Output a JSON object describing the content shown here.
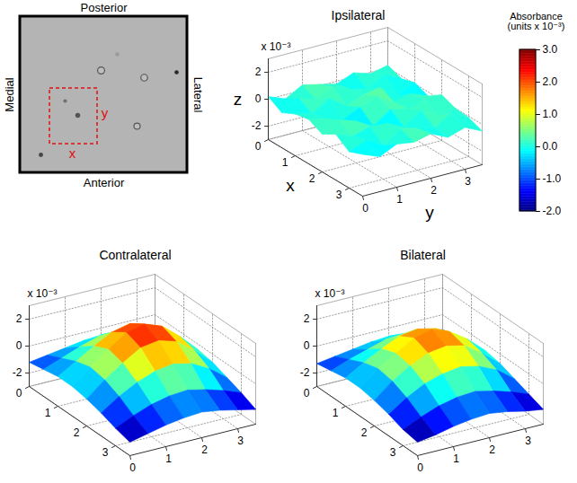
{
  "chart_data": [
    {
      "type": "surface",
      "title": "Ipsilateral",
      "xlabel": "x",
      "ylabel": "y",
      "zlabel": "z",
      "annotation": "x 10⁻³",
      "x": [
        0,
        0.5,
        1,
        1.5,
        2,
        2.5,
        3,
        3.5
      ],
      "y": [
        0,
        0.5,
        1,
        1.5,
        2,
        2.5,
        3,
        3.5
      ],
      "z": [
        [
          0.2,
          -0.3,
          0.4,
          0.1,
          -0.2,
          0.3,
          -0.1,
          0.2
        ],
        [
          -0.4,
          0.3,
          -0.1,
          0.5,
          0.0,
          -0.3,
          0.4,
          -0.2
        ],
        [
          0.1,
          -0.2,
          0.6,
          -0.3,
          0.2,
          0.4,
          -0.5,
          0.1
        ],
        [
          0.3,
          0.0,
          -0.4,
          0.2,
          0.7,
          -0.1,
          0.2,
          -0.3
        ],
        [
          -0.2,
          0.5,
          0.1,
          -0.6,
          0.3,
          0.0,
          0.3,
          0.4
        ],
        [
          0.4,
          -0.1,
          0.3,
          0.2,
          -0.4,
          0.5,
          -0.2,
          0.0
        ],
        [
          -0.3,
          0.2,
          -0.5,
          0.4,
          0.1,
          -0.2,
          0.6,
          -0.1
        ],
        [
          0.1,
          -0.4,
          0.2,
          0.0,
          0.3,
          -0.3,
          0.1,
          -0.5
        ]
      ],
      "xlim": [
        0,
        3.5
      ],
      "ylim": [
        0,
        3.5
      ],
      "zlim": [
        -3,
        3
      ],
      "xticks": [
        0,
        1,
        2,
        3
      ],
      "yticks": [
        0,
        1,
        2,
        3
      ],
      "zticks": [
        -2,
        0,
        2
      ],
      "grid": true
    },
    {
      "type": "surface",
      "title": "Contralateral",
      "annotation": "x 10⁻³",
      "x": [
        0,
        0.5,
        1,
        1.5,
        2,
        2.5,
        3,
        3.5
      ],
      "y": [
        0,
        0.5,
        1,
        1.5,
        2,
        2.5,
        3,
        3.5
      ],
      "z": [
        [
          -1.2,
          -1.0,
          -0.8,
          -0.6,
          -0.5,
          -0.6,
          -0.8,
          -1.0
        ],
        [
          -1.0,
          -0.5,
          0.0,
          0.4,
          0.5,
          0.3,
          -0.2,
          -0.8
        ],
        [
          -0.8,
          0.0,
          0.8,
          1.5,
          1.8,
          1.4,
          0.5,
          -0.5
        ],
        [
          -0.8,
          0.3,
          1.3,
          2.2,
          2.5,
          2.0,
          0.9,
          -0.4
        ],
        [
          -1.0,
          0.1,
          1.0,
          1.8,
          2.0,
          1.6,
          0.6,
          -0.6
        ],
        [
          -1.3,
          -0.4,
          0.3,
          0.8,
          1.0,
          0.7,
          0.0,
          -1.0
        ],
        [
          -1.7,
          -1.1,
          -0.6,
          -0.3,
          -0.2,
          -0.5,
          -0.9,
          -1.4
        ],
        [
          -2.0,
          -1.7,
          -1.4,
          -1.2,
          -1.1,
          -1.3,
          -1.6,
          -1.9
        ]
      ],
      "xlim": [
        0,
        3.5
      ],
      "ylim": [
        0,
        3.5
      ],
      "zlim": [
        -3,
        3
      ],
      "xticks": [
        0,
        1,
        2,
        3
      ],
      "yticks": [
        0,
        1,
        2,
        3
      ],
      "zticks": [
        -2,
        0,
        2
      ],
      "grid": true
    },
    {
      "type": "surface",
      "title": "Bilateral",
      "annotation": "x 10⁻³",
      "x": [
        0,
        0.5,
        1,
        1.5,
        2,
        2.5,
        3,
        3.5
      ],
      "y": [
        0,
        0.5,
        1,
        1.5,
        2,
        2.5,
        3,
        3.5
      ],
      "z": [
        [
          -1.3,
          -1.1,
          -0.9,
          -0.7,
          -0.6,
          -0.7,
          -0.9,
          -1.1
        ],
        [
          -1.1,
          -0.6,
          -0.2,
          0.2,
          0.3,
          0.1,
          -0.3,
          -0.9
        ],
        [
          -0.9,
          -0.1,
          0.6,
          1.2,
          1.4,
          1.1,
          0.3,
          -0.6
        ],
        [
          -0.9,
          0.2,
          1.0,
          1.8,
          2.1,
          1.6,
          0.7,
          -0.5
        ],
        [
          -1.1,
          0.0,
          0.8,
          1.4,
          1.6,
          1.3,
          0.4,
          -0.7
        ],
        [
          -1.4,
          -0.5,
          0.2,
          0.6,
          0.8,
          0.5,
          -0.1,
          -1.1
        ],
        [
          -1.8,
          -1.2,
          -0.7,
          -0.4,
          -0.3,
          -0.6,
          -1.0,
          -1.5
        ],
        [
          -2.0,
          -1.8,
          -1.5,
          -1.3,
          -1.2,
          -1.4,
          -1.7,
          -1.9
        ]
      ],
      "xlim": [
        0,
        3.5
      ],
      "ylim": [
        0,
        3.5
      ],
      "zlim": [
        -3,
        3
      ],
      "xticks": [
        0,
        1,
        2,
        3
      ],
      "yticks": [
        0,
        1,
        2,
        3
      ],
      "zticks": [
        -2,
        0,
        2
      ],
      "grid": true
    }
  ],
  "colorbar": {
    "title": "Absorbance (units x 10⁻³)",
    "color": "jet",
    "range": [
      -2,
      3
    ],
    "ticks": [
      {
        "value": 3,
        "label": "3.0"
      },
      {
        "value": 2,
        "label": "2.0"
      },
      {
        "value": 1,
        "label": "1.0"
      },
      {
        "value": 0,
        "label": "0.0"
      },
      {
        "value": -1,
        "label": "-1.0"
      },
      {
        "value": -2,
        "label": "-2.0"
      }
    ]
  },
  "image": {
    "top": "Posterior",
    "bottom": "Anterior",
    "left": "Medial",
    "right": "Lateral",
    "box_labels": [
      "x",
      "y"
    ]
  }
}
